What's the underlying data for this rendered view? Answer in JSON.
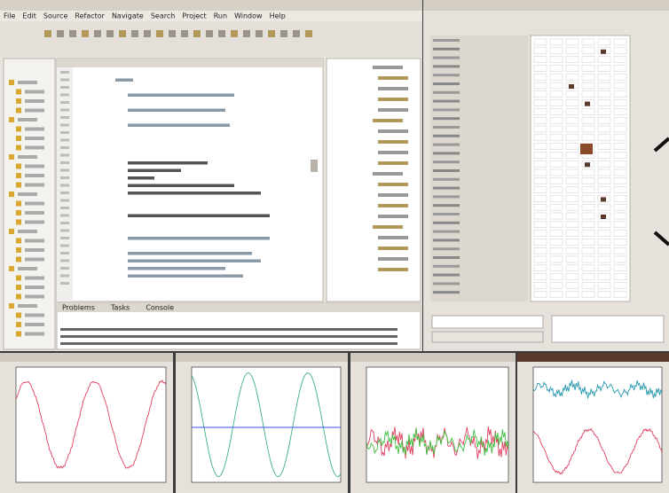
{
  "ide": {
    "menu": [
      "File",
      "Edit",
      "Source",
      "Refactor",
      "Navigate",
      "Search",
      "Project",
      "Run",
      "Window",
      "Help"
    ],
    "bottom_tabs": [
      "Problems",
      "Tasks",
      "Console"
    ]
  }
}
